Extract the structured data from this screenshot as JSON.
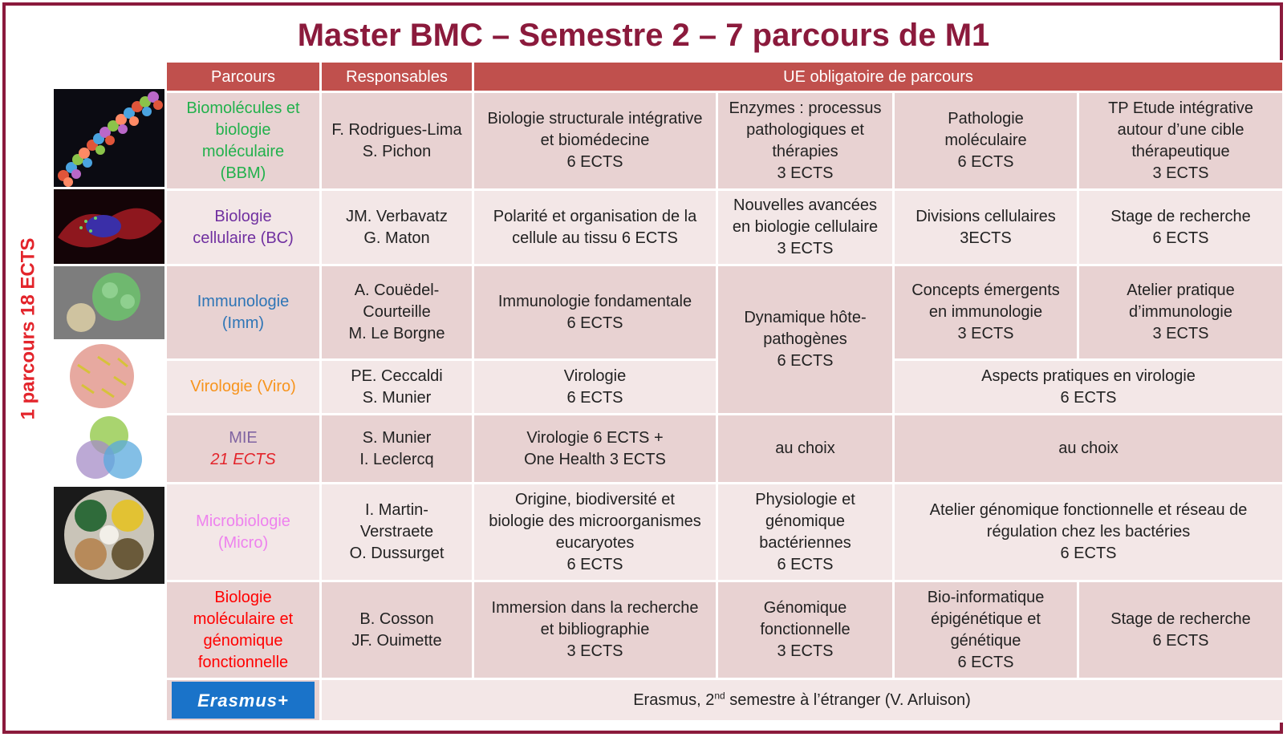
{
  "title": "Master BMC – Semestre 2 – 7 parcours de M1",
  "side_label": "1 parcours 18 ECTS",
  "colors": {
    "frame": "#8b1a3c",
    "header_bg": "#c0504d",
    "cell_bg": "#e8d2d2",
    "cell_alt_bg": "#f3e7e7",
    "bbm": "#22b14c",
    "bc": "#7030a0",
    "imm": "#2e75b6",
    "viro": "#f7941d",
    "mie": "#8064a2",
    "micro": "#ee82ee",
    "bmgf": "#ff0000",
    "erasmus": "#1a73c9"
  },
  "headers": {
    "parcours": "Parcours",
    "responsables": "Responsables",
    "ue": "UE obligatoire de parcours"
  },
  "rows": {
    "bbm": {
      "name1": "Biomolécules et",
      "name2": "biologie",
      "name3": "moléculaire",
      "name4": "(BBM)",
      "resp1": "F. Rodrigues-Lima",
      "resp2": "S. Pichon",
      "ue1a": "Biologie structurale intégrative",
      "ue1b": "et biomédecine",
      "ue1c": "6 ECTS",
      "ue2a": "Enzymes : processus",
      "ue2b": "pathologiques et",
      "ue2c": "thérapies",
      "ue2d": "3 ECTS",
      "ue3a": "Pathologie",
      "ue3b": "moléculaire",
      "ue3c": "6 ECTS",
      "ue4a": "TP Etude intégrative",
      "ue4b": "autour d’une cible",
      "ue4c": "thérapeutique",
      "ue4d": "3 ECTS"
    },
    "bc": {
      "name1": "Biologie",
      "name2": "cellulaire (BC)",
      "resp1": "JM. Verbavatz",
      "resp2": "G. Maton",
      "ue1a": "Polarité et organisation de la",
      "ue1b": "cellule au tissu 6 ECTS",
      "ue2a": "Nouvelles avancées",
      "ue2b": "en biologie cellulaire",
      "ue2c": "3 ECTS",
      "ue3a": "Divisions cellulaires",
      "ue3b": "3ECTS",
      "ue4a": "Stage de recherche",
      "ue4b": "6 ECTS"
    },
    "imm": {
      "name1": "Immunologie",
      "name2": "(Imm)",
      "resp1": "A. Couëdel-",
      "resp2": "Courteille",
      "resp3": "M. Le Borgne",
      "ue1a": "Immunologie fondamentale",
      "ue1b": "6 ECTS",
      "ue3a": "Concepts émergents",
      "ue3b": "en immunologie",
      "ue3c": "3 ECTS",
      "ue4a": "Atelier pratique",
      "ue4b": "d’immunologie",
      "ue4c": "3 ECTS"
    },
    "shared": {
      "a": "Dynamique hôte-",
      "b": "pathogènes",
      "c": "6 ECTS"
    },
    "viro": {
      "name1": "Virologie (Viro)",
      "resp1": "PE. Ceccaldi",
      "resp2": "S. Munier",
      "ue1a": "Virologie",
      "ue1b": "6 ECTS",
      "ue3a": "Aspects pratiques en virologie",
      "ue3b": "6 ECTS"
    },
    "mie": {
      "name1": "MIE",
      "name2": "21 ECTS",
      "resp1": "S. Munier",
      "resp2": "I. Leclercq",
      "ue1a": "Virologie 6 ECTS +",
      "ue1b": "One Health 3 ECTS",
      "ue2a": "au choix",
      "ue3a": "au choix"
    },
    "micro": {
      "name1": "Microbiologie",
      "name2": "(Micro)",
      "resp1": "I. Martin-",
      "resp2": "Verstraete",
      "resp3": "O. Dussurget",
      "ue1a": "Origine, biodiversité et",
      "ue1b": "biologie des microorganismes",
      "ue1c": "eucaryotes",
      "ue1d": "6 ECTS",
      "ue2a": "Physiologie et",
      "ue2b": "génomique",
      "ue2c": "bactériennes",
      "ue2d": "6 ECTS",
      "ue3a": "Atelier génomique fonctionnelle et réseau de",
      "ue3b": "régulation chez les bactéries",
      "ue3c": "6 ECTS"
    },
    "bmgf": {
      "name1": "Biologie",
      "name2": "moléculaire et",
      "name3": "génomique",
      "name4": "fonctionnelle",
      "resp1": "B. Cosson",
      "resp2": "JF. Ouimette",
      "ue1a": "Immersion dans la recherche",
      "ue1b": "et bibliographie",
      "ue1c": "3 ECTS",
      "ue2a": "Génomique",
      "ue2b": "fonctionnelle",
      "ue2c": "3 ECTS",
      "ue3a": "Bio-informatique",
      "ue3b": "épigénétique et",
      "ue3c": "génétique",
      "ue3d": "6 ECTS",
      "ue4a": "Stage de recherche",
      "ue4b": "6 ECTS"
    },
    "erasmus": {
      "logo": "Erasmus+",
      "pre": "Erasmus, 2",
      "sup": "nd",
      "post": " semestre à l’étranger (V. Arluison)"
    }
  }
}
